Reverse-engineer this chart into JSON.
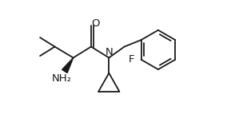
{
  "bg_color": "#ffffff",
  "line_color": "#1a1a1a",
  "line_width": 1.3,
  "figsize": [
    2.84,
    1.48
  ],
  "dpi": 100,
  "xlim": [
    0,
    284
  ],
  "ylim": [
    0,
    148
  ],
  "atoms": {
    "O_label": "O",
    "N_label": "N",
    "NH2_label": "NH₂",
    "F_label": "F"
  },
  "font_size": 9.5
}
